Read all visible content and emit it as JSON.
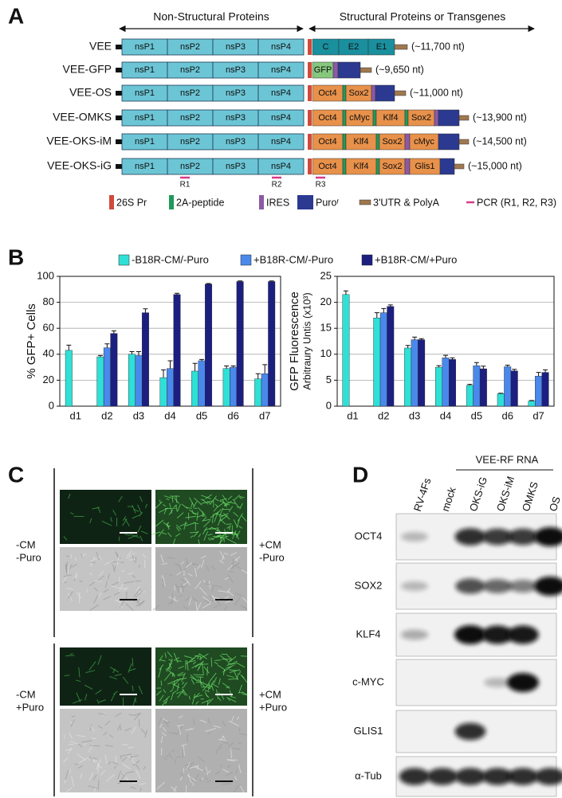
{
  "panel_labels": [
    "A",
    "B",
    "C",
    "D"
  ],
  "panel_a": {
    "header": {
      "left": "Non-Structural Proteins",
      "right": "Structural Proteins or Transgenes"
    },
    "ns_proteins": [
      "nsP1",
      "nsP2",
      "nsP3",
      "nsP4"
    ],
    "constructs": [
      {
        "name": "VEE",
        "segments": [
          "C",
          "E2",
          "E1"
        ],
        "length": "(~11,700 nt)"
      },
      {
        "name": "VEE-GFP",
        "segments": [
          "GFP"
        ],
        "length": "(~9,650 nt)"
      },
      {
        "name": "VEE-OS",
        "segments": [
          "Oct4",
          "Sox2"
        ],
        "length": "(~11,000 nt)"
      },
      {
        "name": "VEE-OMKS",
        "segments": [
          "Oct4",
          "cMyc",
          "Klf4",
          "Sox2"
        ],
        "length": "(~13,900 nt)"
      },
      {
        "name": "VEE-OKS-iM",
        "segments": [
          "Oct4",
          "Klf4",
          "Sox2",
          "cMyc"
        ],
        "length": "(~14,500 nt)"
      },
      {
        "name": "VEE-OKS-iG",
        "segments": [
          "Oct4",
          "Klf4",
          "Sox2",
          "Glis1"
        ],
        "length": "(~15,000 nt)"
      }
    ],
    "pcr": [
      "R1",
      "R2",
      "R3"
    ],
    "legend": [
      "26S Pr",
      "2A-peptide",
      "IRES",
      "Puroʳ",
      "3'UTR & PolyA",
      "PCR (R1, R2, R3)"
    ]
  },
  "chart_data": [
    {
      "type": "bar",
      "y_label": "% GFP+ Cells",
      "categories": [
        "d1",
        "d2",
        "d3",
        "d4",
        "d5",
        "d6",
        "d7"
      ],
      "series": [
        {
          "name": "-B18R-CM/-Puro",
          "color": "#2fe0d6",
          "values": [
            43,
            38,
            40,
            22,
            27,
            29,
            21
          ],
          "errors": [
            4,
            1,
            2,
            6,
            6,
            2,
            4
          ]
        },
        {
          "name": "+B18R-CM/-Puro",
          "color": "#4a88ec",
          "values": [
            null,
            45,
            39,
            29,
            35,
            30,
            25
          ],
          "errors": [
            null,
            3,
            3,
            6,
            1,
            1,
            7
          ]
        },
        {
          "name": "+B18R-CM/+Puro",
          "color": "#1c1f80",
          "values": [
            null,
            56,
            72,
            86,
            94,
            96,
            96
          ],
          "errors": [
            null,
            2,
            3,
            1,
            0.5,
            0.5,
            0.5
          ]
        }
      ],
      "ylim": [
        0,
        100
      ],
      "yticks": [
        0,
        20,
        40,
        60,
        80,
        100
      ],
      "grid": true
    },
    {
      "type": "bar",
      "y_label": [
        "GFP Fluorescence",
        "Arbitraury Untis (x10³)"
      ],
      "categories": [
        "d1",
        "d2",
        "d3",
        "d4",
        "d5",
        "d6",
        "d7"
      ],
      "series": [
        {
          "color": "#2fe0d6",
          "values": [
            21.5,
            17,
            11.2,
            7.5,
            4,
            2.4,
            1
          ],
          "errors": [
            0.7,
            1,
            0.5,
            0.3,
            0.2,
            0.1,
            0.1
          ]
        },
        {
          "color": "#4a88ec",
          "values": [
            null,
            18,
            12.8,
            9.3,
            7.8,
            7.6,
            5.8
          ],
          "errors": [
            null,
            0.8,
            0.5,
            0.5,
            0.6,
            0.3,
            0.7
          ]
        },
        {
          "color": "#1c1f80",
          "values": [
            null,
            19.2,
            12.8,
            9,
            7.2,
            6.8,
            6.5
          ],
          "errors": [
            null,
            0.3,
            0.2,
            0.3,
            0.5,
            0.3,
            0.5
          ]
        }
      ],
      "ylim": [
        0,
        25
      ],
      "yticks": [
        0,
        5,
        10,
        15,
        20,
        25
      ],
      "grid": true
    }
  ],
  "panel_c": {
    "labels": [
      [
        "-CM",
        "-Puro"
      ],
      [
        "+CM",
        "-Puro"
      ],
      [
        "-CM",
        "+Puro"
      ],
      [
        "+CM",
        "+Puro"
      ]
    ]
  },
  "panel_d": {
    "group": "VEE-RF RNA",
    "lanes": [
      "RV-4Fs",
      "mock",
      "OKS-iG",
      "OKS-iM",
      "OMKS",
      "OS"
    ],
    "rows": [
      "OCT4",
      "SOX2",
      "KLF4",
      "c-MYC",
      "GLIS1",
      "α-Tub"
    ]
  }
}
